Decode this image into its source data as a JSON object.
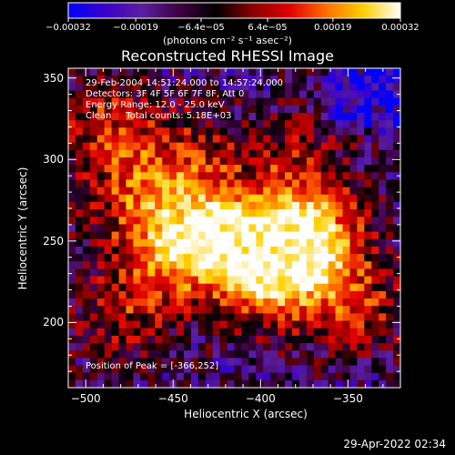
{
  "chart_data": {
    "type": "heatmap",
    "title": "Reconstructed RHESSI Image",
    "xlabel": "Heliocentric X (arcsec)",
    "ylabel": "Heliocentric Y (arcsec)",
    "xlim": [
      -510,
      -320
    ],
    "ylim": [
      160,
      356
    ],
    "x_ticks": [
      -500,
      -450,
      -400,
      -350
    ],
    "y_ticks": [
      200,
      250,
      300,
      350
    ],
    "colorbar": {
      "units": "(photons cm⁻² s⁻¹ asec⁻²)",
      "range": [
        -0.00032,
        0.00032
      ],
      "tick_labels": [
        "-0.00032",
        "-0.00019",
        "-6.4e-05",
        "6.4e-05",
        "0.00019",
        "0.00032"
      ],
      "tick_values": [
        -0.00032,
        -0.00019,
        -6.4e-05,
        6.4e-05,
        0.00019,
        0.00032
      ],
      "colormap": [
        "#0000ff",
        "#3a00c8",
        "#5a1fa0",
        "#400040",
        "#000000",
        "#8a0000",
        "#e00000",
        "#ff7000",
        "#ffd000",
        "#ffffff"
      ]
    },
    "annotations": [
      "29-Feb-2004 14:51:24.000 to 14:57:24.000",
      "Detectors: 3F 4F 5F 6F 7F 8F, Att 0",
      "Energy Range: 12.0 - 25.0 keV",
      "Clean     Total counts: 5.18E+03"
    ],
    "peak_label": "Position of Peak = [-366,252]",
    "peak_position": [
      -366,
      252
    ],
    "sources": [
      {
        "x": -395,
        "y": 230,
        "intensity": 1.0
      },
      {
        "x": -370,
        "y": 255,
        "intensity": 0.9
      },
      {
        "x": -420,
        "y": 255,
        "intensity": 0.75
      },
      {
        "x": -450,
        "y": 240,
        "intensity": 0.6
      },
      {
        "x": -470,
        "y": 275,
        "intensity": 0.55
      },
      {
        "x": -490,
        "y": 320,
        "intensity": 0.55
      },
      {
        "x": -345,
        "y": 210,
        "intensity": 0.55
      },
      {
        "x": -440,
        "y": 300,
        "intensity": 0.45
      },
      {
        "x": -480,
        "y": 205,
        "intensity": 0.45
      },
      {
        "x": -380,
        "y": 300,
        "intensity": 0.4
      }
    ]
  },
  "footer_date": "29-Apr-2022 02:34"
}
